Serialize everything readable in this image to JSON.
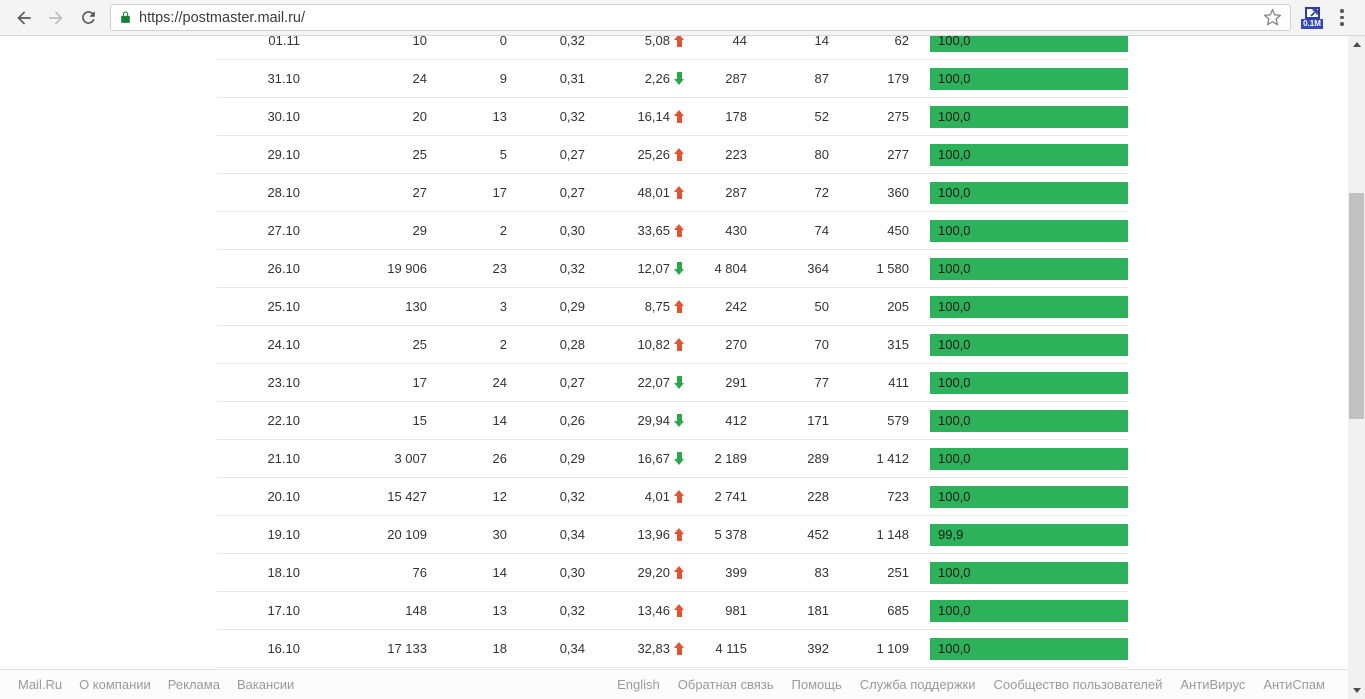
{
  "browser": {
    "url": "https://postmaster.mail.ru/",
    "extension_badge": "0.1M"
  },
  "table": {
    "rows": [
      {
        "date": "01.11",
        "c1": "10",
        "c2": "0",
        "c3": "0,32",
        "trend_value": "5,08",
        "trend_dir": "up",
        "c4": "44",
        "c5": "14",
        "c6": "62",
        "bar_label": "100,0",
        "bar_pct": 100
      },
      {
        "date": "31.10",
        "c1": "24",
        "c2": "9",
        "c3": "0,31",
        "trend_value": "2,26",
        "trend_dir": "down",
        "c4": "287",
        "c5": "87",
        "c6": "179",
        "bar_label": "100,0",
        "bar_pct": 100
      },
      {
        "date": "30.10",
        "c1": "20",
        "c2": "13",
        "c3": "0,32",
        "trend_value": "16,14",
        "trend_dir": "up",
        "c4": "178",
        "c5": "52",
        "c6": "275",
        "bar_label": "100,0",
        "bar_pct": 100
      },
      {
        "date": "29.10",
        "c1": "25",
        "c2": "5",
        "c3": "0,27",
        "trend_value": "25,26",
        "trend_dir": "up",
        "c4": "223",
        "c5": "80",
        "c6": "277",
        "bar_label": "100,0",
        "bar_pct": 100
      },
      {
        "date": "28.10",
        "c1": "27",
        "c2": "17",
        "c3": "0,27",
        "trend_value": "48,01",
        "trend_dir": "up",
        "c4": "287",
        "c5": "72",
        "c6": "360",
        "bar_label": "100,0",
        "bar_pct": 100
      },
      {
        "date": "27.10",
        "c1": "29",
        "c2": "2",
        "c3": "0,30",
        "trend_value": "33,65",
        "trend_dir": "up",
        "c4": "430",
        "c5": "74",
        "c6": "450",
        "bar_label": "100,0",
        "bar_pct": 100
      },
      {
        "date": "26.10",
        "c1": "19 906",
        "c2": "23",
        "c3": "0,32",
        "trend_value": "12,07",
        "trend_dir": "down",
        "c4": "4 804",
        "c5": "364",
        "c6": "1 580",
        "bar_label": "100,0",
        "bar_pct": 100
      },
      {
        "date": "25.10",
        "c1": "130",
        "c2": "3",
        "c3": "0,29",
        "trend_value": "8,75",
        "trend_dir": "up",
        "c4": "242",
        "c5": "50",
        "c6": "205",
        "bar_label": "100,0",
        "bar_pct": 100
      },
      {
        "date": "24.10",
        "c1": "25",
        "c2": "2",
        "c3": "0,28",
        "trend_value": "10,82",
        "trend_dir": "up",
        "c4": "270",
        "c5": "70",
        "c6": "315",
        "bar_label": "100,0",
        "bar_pct": 100
      },
      {
        "date": "23.10",
        "c1": "17",
        "c2": "24",
        "c3": "0,27",
        "trend_value": "22,07",
        "trend_dir": "down",
        "c4": "291",
        "c5": "77",
        "c6": "411",
        "bar_label": "100,0",
        "bar_pct": 100
      },
      {
        "date": "22.10",
        "c1": "15",
        "c2": "14",
        "c3": "0,26",
        "trend_value": "29,94",
        "trend_dir": "down",
        "c4": "412",
        "c5": "171",
        "c6": "579",
        "bar_label": "100,0",
        "bar_pct": 100
      },
      {
        "date": "21.10",
        "c1": "3 007",
        "c2": "26",
        "c3": "0,29",
        "trend_value": "16,67",
        "trend_dir": "down",
        "c4": "2 189",
        "c5": "289",
        "c6": "1 412",
        "bar_label": "100,0",
        "bar_pct": 100
      },
      {
        "date": "20.10",
        "c1": "15 427",
        "c2": "12",
        "c3": "0,32",
        "trend_value": "4,01",
        "trend_dir": "up",
        "c4": "2 741",
        "c5": "228",
        "c6": "723",
        "bar_label": "100,0",
        "bar_pct": 100
      },
      {
        "date": "19.10",
        "c1": "20 109",
        "c2": "30",
        "c3": "0,34",
        "trend_value": "13,96",
        "trend_dir": "up",
        "c4": "5 378",
        "c5": "452",
        "c6": "1 148",
        "bar_label": "99,9",
        "bar_pct": 99.9
      },
      {
        "date": "18.10",
        "c1": "76",
        "c2": "14",
        "c3": "0,30",
        "trend_value": "29,20",
        "trend_dir": "up",
        "c4": "399",
        "c5": "83",
        "c6": "251",
        "bar_label": "100,0",
        "bar_pct": 100
      },
      {
        "date": "17.10",
        "c1": "148",
        "c2": "13",
        "c3": "0,32",
        "trend_value": "13,46",
        "trend_dir": "up",
        "c4": "981",
        "c5": "181",
        "c6": "685",
        "bar_label": "100,0",
        "bar_pct": 100
      },
      {
        "date": "16.10",
        "c1": "17 133",
        "c2": "18",
        "c3": "0,34",
        "trend_value": "32,83",
        "trend_dir": "up",
        "c4": "4 115",
        "c5": "392",
        "c6": "1 109",
        "bar_label": "100,0",
        "bar_pct": 100
      }
    ]
  },
  "footer": {
    "left_links": [
      "Mail.Ru",
      "О компании",
      "Реклама",
      "Вакансии"
    ],
    "right_links": [
      "English",
      "Обратная связь",
      "Помощь",
      "Служба поддержки",
      "Сообщество пользователей",
      "АнтиВирус",
      "АнтиСпам"
    ]
  },
  "colors": {
    "bar_green": "#2db15b",
    "trend_up_red": "#e2542f",
    "trend_down_green": "#2aa84f",
    "lock_green": "#188038",
    "extension_badge_blue": "#3646c2"
  }
}
